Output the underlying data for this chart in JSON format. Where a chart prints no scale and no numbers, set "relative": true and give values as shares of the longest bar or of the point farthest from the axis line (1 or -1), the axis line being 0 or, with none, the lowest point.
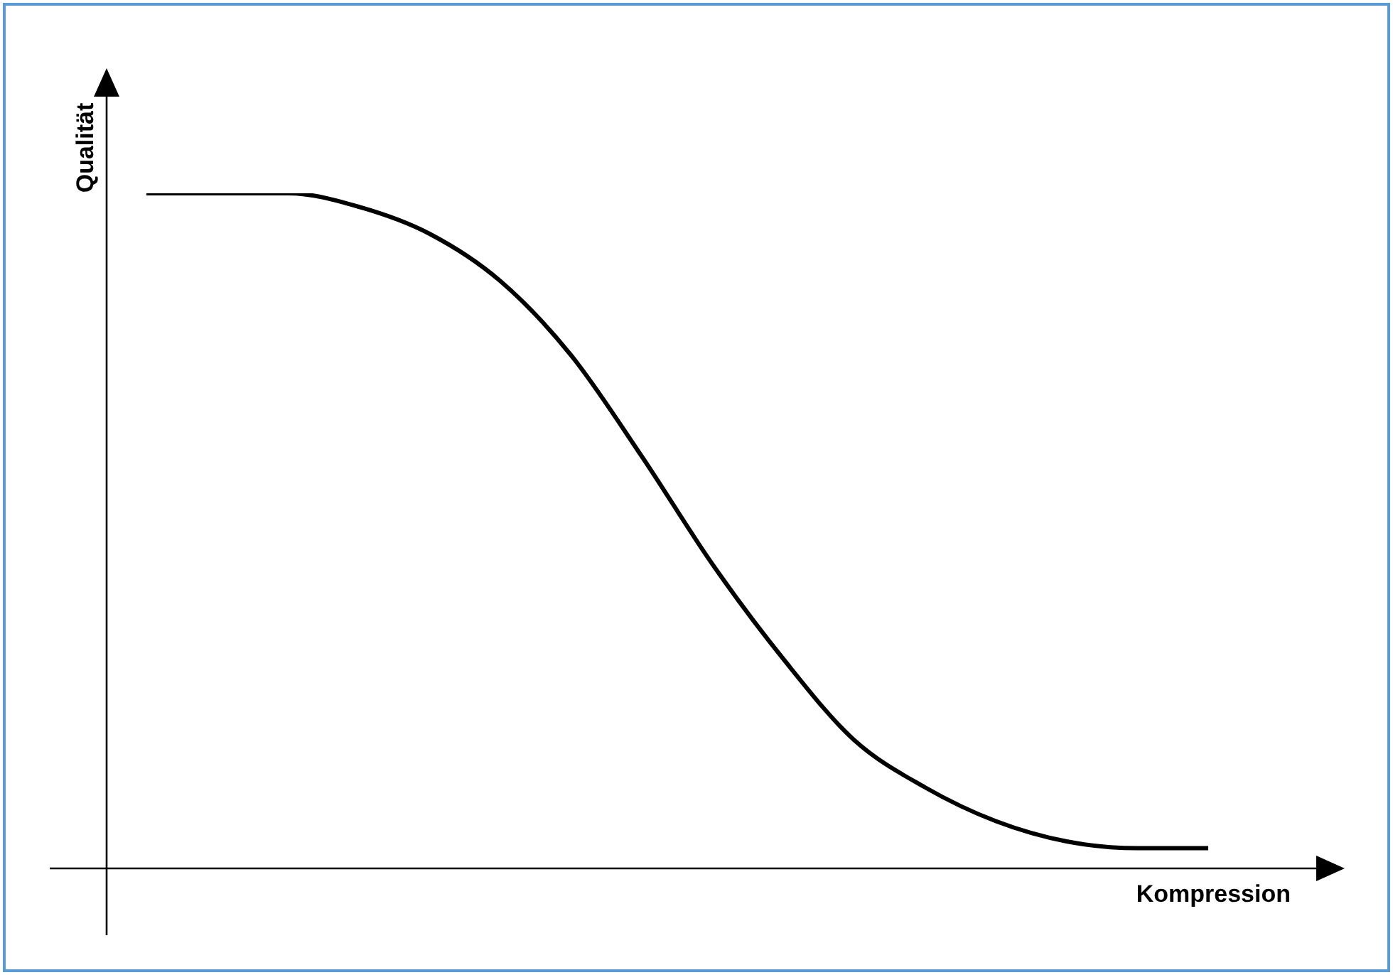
{
  "chart_data": {
    "type": "line",
    "xlabel": "Kompression",
    "ylabel": "Qualität",
    "relative": true,
    "color": "#000000",
    "categories": [
      null,
      null,
      null,
      null,
      null,
      null,
      null,
      null,
      null,
      null,
      null,
      null,
      null,
      null,
      null,
      null
    ],
    "values": [
      1,
      1,
      1,
      0.98,
      0.94,
      0.87,
      0.76,
      0.61,
      0.45,
      0.31,
      0.19,
      0.12,
      0.07,
      0.04,
      0.03,
      0.03
    ]
  }
}
